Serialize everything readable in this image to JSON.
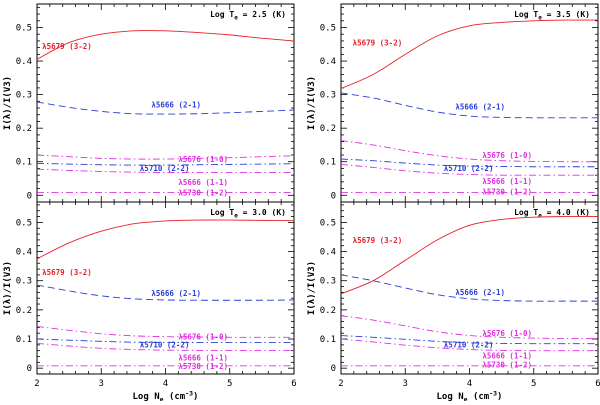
{
  "chart_data": {
    "type": "line",
    "xlabel": "Log N_e (cm^-3)",
    "xlabel_main": "Log N",
    "xlabel_sub": "e",
    "xlabel_unit": " (cm",
    "xlabel_exp": "-3",
    "xlabel_close": ")",
    "ylabel": "I(λ)/I(V3)",
    "xlim": [
      2,
      6
    ],
    "ylim": [
      -0.02,
      0.57
    ],
    "x_ticks": [
      "2",
      "3",
      "4",
      "5",
      "6"
    ],
    "y_ticks": [
      "0",
      "0.1",
      "0.2",
      "0.3",
      "0.4",
      "0.5"
    ],
    "colors": {
      "red": "#e8202a",
      "blue": "#2a3fd6",
      "magenta": "#e030e0"
    },
    "panels": [
      {
        "title_prefix": "Log T",
        "title_sub": "e",
        "title_value": " = 2.5 (K)",
        "x": [
          2.0,
          2.5,
          3.0,
          3.5,
          4.0,
          4.5,
          5.0,
          5.5,
          6.0
        ],
        "series": [
          {
            "name": "λ5679 (3-2)",
            "color": "red",
            "style": "solid",
            "label_x": 2.08,
            "label_y": 0.445,
            "values": [
              0.405,
              0.455,
              0.48,
              0.49,
              0.49,
              0.485,
              0.478,
              0.468,
              0.46
            ]
          },
          {
            "name": "λ5666 (2-1)",
            "color": "blue",
            "style": "dash",
            "label_x": 3.78,
            "label_y": 0.27,
            "values": [
              0.278,
              0.262,
              0.25,
              0.243,
              0.242,
              0.243,
              0.246,
              0.25,
              0.254
            ]
          },
          {
            "name": "λ5676 (1-0)",
            "color": "magenta",
            "style": "dashdot",
            "label_x": 4.2,
            "label_y": 0.108,
            "values": [
              0.12,
              0.115,
              0.11,
              0.108,
              0.108,
              0.11,
              0.112,
              0.115,
              0.118
            ]
          },
          {
            "name": "λ5710 (2-2)",
            "color": "blue",
            "style": "dashdot",
            "label_x": 3.6,
            "label_y": 0.082,
            "values": [
              0.095,
              0.093,
              0.091,
              0.09,
              0.09,
              0.091,
              0.092,
              0.093,
              0.094
            ]
          },
          {
            "name": "λ5666 (1-1)",
            "color": "magenta",
            "style": "dashdot",
            "label_x": 4.2,
            "label_y": 0.04,
            "values": [
              0.078,
              0.074,
              0.071,
              0.069,
              0.068,
              0.068,
              0.068,
              0.068,
              0.068
            ]
          },
          {
            "name": "λ5730 (1-2)",
            "color": "magenta",
            "style": "dashdot",
            "label_x": 4.2,
            "label_y": 0.008,
            "values": [
              0.008,
              0.008,
              0.008,
              0.008,
              0.008,
              0.008,
              0.008,
              0.008,
              0.008
            ]
          }
        ]
      },
      {
        "title_prefix": "Log T",
        "title_sub": "e",
        "title_value": " = 3.5 (K)",
        "x": [
          2.0,
          2.5,
          3.0,
          3.5,
          4.0,
          4.5,
          5.0,
          5.5,
          6.0
        ],
        "series": [
          {
            "name": "λ5679 (3-2)",
            "color": "red",
            "style": "solid",
            "label_x": 2.18,
            "label_y": 0.455,
            "values": [
              0.318,
              0.36,
              0.42,
              0.475,
              0.505,
              0.515,
              0.52,
              0.522,
              0.522
            ]
          },
          {
            "name": "λ5666 (2-1)",
            "color": "blue",
            "style": "dash",
            "label_x": 3.78,
            "label_y": 0.265,
            "values": [
              0.305,
              0.29,
              0.268,
              0.248,
              0.236,
              0.232,
              0.231,
              0.231,
              0.231
            ]
          },
          {
            "name": "λ5676 (1-0)",
            "color": "magenta",
            "style": "dashdot",
            "label_x": 4.2,
            "label_y": 0.12,
            "values": [
              0.163,
              0.15,
              0.133,
              0.118,
              0.108,
              0.103,
              0.101,
              0.1,
              0.1
            ]
          },
          {
            "name": "λ5710 (2-2)",
            "color": "blue",
            "style": "dashdot",
            "label_x": 3.6,
            "label_y": 0.082,
            "values": [
              0.108,
              0.103,
              0.096,
              0.09,
              0.087,
              0.086,
              0.085,
              0.085,
              0.085
            ]
          },
          {
            "name": "λ5666 (1-1)",
            "color": "magenta",
            "style": "dashdot",
            "label_x": 4.2,
            "label_y": 0.043,
            "values": [
              0.092,
              0.083,
              0.073,
              0.066,
              0.062,
              0.06,
              0.06,
              0.06,
              0.06
            ]
          },
          {
            "name": "λ5730 (1-2)",
            "color": "magenta",
            "style": "dashdot",
            "label_x": 4.2,
            "label_y": 0.012,
            "values": [
              0.008,
              0.008,
              0.008,
              0.008,
              0.008,
              0.008,
              0.008,
              0.008,
              0.008
            ]
          }
        ]
      },
      {
        "title_prefix": "Log T",
        "title_sub": "e",
        "title_value": " = 3.0 (K)",
        "x": [
          2.0,
          2.5,
          3.0,
          3.5,
          4.0,
          4.5,
          5.0,
          5.5,
          6.0
        ],
        "series": [
          {
            "name": "λ5679 (3-2)",
            "color": "red",
            "style": "solid",
            "label_x": 2.08,
            "label_y": 0.33,
            "values": [
              0.375,
              0.43,
              0.47,
              0.495,
              0.505,
              0.508,
              0.508,
              0.507,
              0.506
            ]
          },
          {
            "name": "λ5666 (2-1)",
            "color": "blue",
            "style": "dash",
            "label_x": 3.78,
            "label_y": 0.258,
            "values": [
              0.285,
              0.265,
              0.248,
              0.238,
              0.234,
              0.233,
              0.233,
              0.233,
              0.234
            ]
          },
          {
            "name": "λ5676 (1-0)",
            "color": "magenta",
            "style": "dashdot",
            "label_x": 4.2,
            "label_y": 0.108,
            "values": [
              0.143,
              0.13,
              0.118,
              0.111,
              0.108,
              0.107,
              0.106,
              0.106,
              0.106
            ]
          },
          {
            "name": "λ5710 (2-2)",
            "color": "blue",
            "style": "dashdot",
            "label_x": 3.6,
            "label_y": 0.082,
            "values": [
              0.1,
              0.096,
              0.092,
              0.089,
              0.088,
              0.088,
              0.088,
              0.088,
              0.088
            ]
          },
          {
            "name": "λ5666 (1-1)",
            "color": "magenta",
            "style": "dashdot",
            "label_x": 4.2,
            "label_y": 0.036,
            "values": [
              0.085,
              0.076,
              0.068,
              0.064,
              0.062,
              0.061,
              0.061,
              0.061,
              0.061
            ]
          },
          {
            "name": "λ5730 (1-2)",
            "color": "magenta",
            "style": "dashdot",
            "label_x": 4.2,
            "label_y": 0.007,
            "values": [
              0.008,
              0.008,
              0.008,
              0.008,
              0.008,
              0.008,
              0.008,
              0.008,
              0.008
            ]
          }
        ]
      },
      {
        "title_prefix": "Log T",
        "title_sub": "e",
        "title_value": " = 4.0 (K)",
        "x": [
          2.0,
          2.5,
          3.0,
          3.5,
          4.0,
          4.5,
          5.0,
          5.5,
          6.0
        ],
        "series": [
          {
            "name": "λ5679 (3-2)",
            "color": "red",
            "style": "solid",
            "label_x": 2.18,
            "label_y": 0.44,
            "values": [
              0.255,
              0.3,
              0.37,
              0.44,
              0.49,
              0.51,
              0.518,
              0.52,
              0.52
            ]
          },
          {
            "name": "λ5666 (2-1)",
            "color": "blue",
            "style": "dash",
            "label_x": 3.78,
            "label_y": 0.262,
            "values": [
              0.32,
              0.3,
              0.275,
              0.252,
              0.238,
              0.232,
              0.23,
              0.23,
              0.23
            ]
          },
          {
            "name": "λ5676 (1-0)",
            "color": "magenta",
            "style": "dashdot",
            "label_x": 4.2,
            "label_y": 0.12,
            "values": [
              0.18,
              0.165,
              0.145,
              0.125,
              0.112,
              0.106,
              0.103,
              0.102,
              0.102
            ]
          },
          {
            "name": "λ5710 (2-2)",
            "color": "blue",
            "style": "dashdot",
            "label_x": 3.6,
            "label_y": 0.082,
            "values": [
              0.112,
              0.106,
              0.099,
              0.092,
              0.087,
              0.085,
              0.084,
              0.084,
              0.084
            ]
          },
          {
            "name": "λ5666 (1-1)",
            "color": "magenta",
            "style": "dashdot",
            "label_x": 4.2,
            "label_y": 0.043,
            "values": [
              0.1,
              0.09,
              0.079,
              0.07,
              0.064,
              0.061,
              0.06,
              0.06,
              0.06
            ]
          },
          {
            "name": "λ5730 (1-2)",
            "color": "magenta",
            "style": "dashdot",
            "label_x": 4.2,
            "label_y": 0.012,
            "values": [
              0.008,
              0.008,
              0.008,
              0.008,
              0.008,
              0.008,
              0.008,
              0.008,
              0.008
            ]
          }
        ]
      }
    ]
  }
}
